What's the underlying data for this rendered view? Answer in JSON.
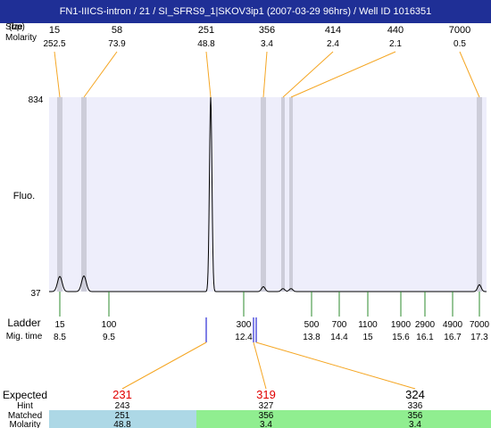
{
  "title": "FN1-IIICS-intron / 21 / SI_SFRS9_1|SKOV3ip1 (2007-03-29 96hrs) / Well ID 1016351",
  "top_rows": {
    "size_label": "Size",
    "bp_label": "(bp)",
    "molarity_label": "Molarity"
  },
  "y_axis": {
    "label": "Fluo.",
    "max_label": "834",
    "min_label": "37"
  },
  "ladder_row": {
    "label": "Ladder",
    "mig_label": "Mig. time"
  },
  "expected_row": {
    "expected_label": "Expected",
    "hint_label": "Hint",
    "matched_label": "Matched",
    "molarity_label": "Molarity"
  },
  "colors": {
    "title_bg": "#1f2f96",
    "title_fg": "#ffffff",
    "plot_bg": "#eeeefb",
    "band": "#cdcdd9",
    "orange": "#f5a623",
    "green": "#2e8b2e",
    "blue": "#0000cc",
    "red": "#e00000",
    "matched_blue": "#add8e6",
    "matched_green": "#90ee90"
  },
  "chart_data": {
    "type": "line",
    "title": "FN1-IIICS-intron / 21 / SI_SFRS9_1|SKOV3ip1 (2007-03-29 96hrs) / Well ID 1016351",
    "ylabel": "Fluo.",
    "ylim": [
      37,
      834
    ],
    "peaks": [
      {
        "size": "15",
        "molarity": "252.5",
        "height": 99
      },
      {
        "size": "58",
        "molarity": "73.9",
        "height": 101
      },
      {
        "size": "251",
        "molarity": "48.8",
        "height": 834
      },
      {
        "size": "356",
        "molarity": "3.4",
        "height": 57
      },
      {
        "size": "414",
        "molarity": "2.4",
        "height": 49
      },
      {
        "size": "440",
        "molarity": "2.1",
        "height": 49
      },
      {
        "size": "7000",
        "molarity": "0.5",
        "height": 65
      }
    ],
    "ladder": [
      {
        "size": "15",
        "mig_time": "8.5"
      },
      {
        "size": "100",
        "mig_time": "9.5"
      },
      {
        "size": "300",
        "mig_time": "12.4"
      },
      {
        "size": "500",
        "mig_time": "13.8"
      },
      {
        "size": "700",
        "mig_time": "14.4"
      },
      {
        "size": "1100",
        "mig_time": "15"
      },
      {
        "size": "1900",
        "mig_time": "15.6"
      },
      {
        "size": "2900",
        "mig_time": "16.1"
      },
      {
        "size": "4900",
        "mig_time": "16.7"
      },
      {
        "size": "7000",
        "mig_time": "17.3"
      }
    ],
    "expected": [
      {
        "expected": "231",
        "hint": "243",
        "matched": "251",
        "molarity": "48.8",
        "highlight": true
      },
      {
        "expected": "319",
        "hint": "327",
        "matched": "356",
        "molarity": "3.4",
        "highlight": true
      },
      {
        "expected": "324",
        "hint": "336",
        "matched": "356",
        "molarity": "3.4",
        "highlight": false
      }
    ]
  }
}
